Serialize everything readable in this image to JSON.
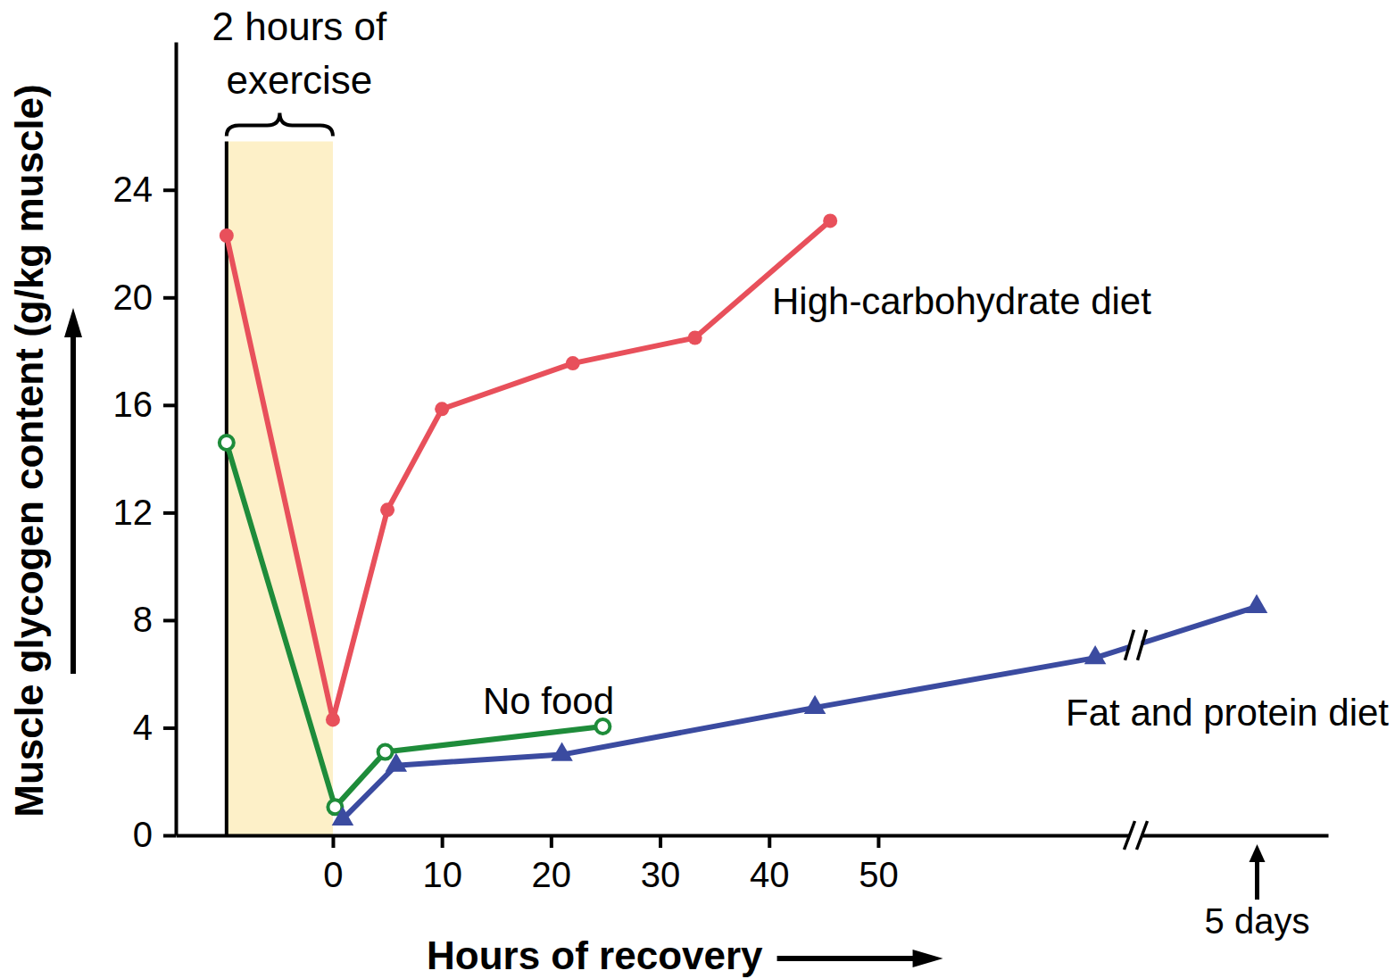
{
  "chart_data": {
    "type": "line",
    "x_label": "Hours of recovery",
    "y_label": "Muscle glycogen content (g/kg muscle)",
    "xlim": [
      -14.4,
      122.5
    ],
    "xbreak": [
      73,
      116
    ],
    "xticks": [
      0,
      10,
      20,
      30,
      40,
      50,
      {
        "value": 120,
        "label": "5 days"
      }
    ],
    "ylim": [
      0,
      29.5
    ],
    "yticks": [
      0,
      4,
      8,
      12,
      16,
      20,
      24
    ],
    "grid": false,
    "shaded_region": {
      "text": [
        "2 hours of",
        "exercise"
      ],
      "xlim": [
        -9.75,
        0
      ],
      "ylim": [
        0,
        25.8
      ]
    },
    "series": [
      {
        "name": "High-carbohydrate diet",
        "color": "#e8505b",
        "marker": "circle",
        "line_style": "solid",
        "x": [
          -9.75,
          0,
          5,
          10,
          22,
          33.2,
          45.6
        ],
        "values": [
          22.3,
          4.3,
          12.1,
          15.85,
          17.55,
          18.5,
          22.85
        ]
      },
      {
        "name": "No food",
        "color": "#1e8c3a",
        "marker": "open-circle",
        "line_style": "solid",
        "x": [
          -9.75,
          0.2,
          4.8,
          24.75
        ],
        "values": [
          14.6,
          1.05,
          3.1,
          4.05
        ]
      },
      {
        "name": "Fat and protein diet",
        "color": "#3b4ba0",
        "marker": "triangle",
        "line_style": "solid",
        "x": [
          0.9,
          5.8,
          21,
          44.2,
          69.9,
          120
        ],
        "values": [
          0.6,
          2.6,
          3.0,
          4.75,
          6.6,
          8.5
        ]
      }
    ]
  }
}
